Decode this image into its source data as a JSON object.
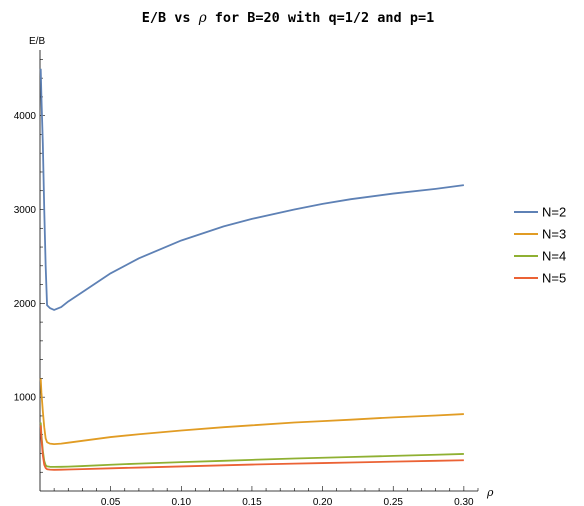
{
  "chart_data": {
    "type": "line",
    "title_prefix": "E/B vs ",
    "title_symbol": "ρ",
    "title_suffix": " for B=20 with q=1/2 and p=1",
    "xlabel": "ρ",
    "ylabel": "E/B",
    "xlim": [
      0,
      0.31
    ],
    "ylim": [
      0,
      4700
    ],
    "x_ticks": [
      0.05,
      0.1,
      0.15,
      0.2,
      0.25,
      0.3
    ],
    "x_tick_labels": [
      "0.05",
      "0.10",
      "0.15",
      "0.20",
      "0.25",
      "0.30"
    ],
    "y_ticks": [
      1000,
      2000,
      3000,
      4000
    ],
    "y_tick_labels": [
      "1000",
      "2000",
      "3000",
      "4000"
    ],
    "grid": false,
    "legend_position": "right",
    "series": [
      {
        "name": "N=2",
        "color": "#5E81B5",
        "x": [
          0.0005,
          0.001,
          0.002,
          0.003,
          0.004,
          0.005,
          0.007,
          0.01,
          0.015,
          0.02,
          0.03,
          0.05,
          0.07,
          0.1,
          0.13,
          0.15,
          0.18,
          0.2,
          0.22,
          0.25,
          0.28,
          0.3
        ],
        "y": [
          4500,
          4200,
          3700,
          3000,
          2400,
          1980,
          1950,
          1930,
          1960,
          2020,
          2120,
          2320,
          2480,
          2670,
          2820,
          2900,
          3000,
          3060,
          3110,
          3170,
          3220,
          3260
        ]
      },
      {
        "name": "N=3",
        "color": "#E19C24",
        "x": [
          0.0005,
          0.001,
          0.002,
          0.003,
          0.004,
          0.005,
          0.007,
          0.01,
          0.015,
          0.02,
          0.03,
          0.05,
          0.07,
          0.1,
          0.13,
          0.15,
          0.18,
          0.2,
          0.22,
          0.25,
          0.28,
          0.3
        ],
        "y": [
          1200,
          1050,
          850,
          680,
          560,
          520,
          505,
          500,
          505,
          515,
          535,
          575,
          605,
          645,
          680,
          700,
          730,
          745,
          760,
          785,
          805,
          820
        ]
      },
      {
        "name": "N=4",
        "color": "#8FB032",
        "x": [
          0.0005,
          0.001,
          0.002,
          0.003,
          0.004,
          0.005,
          0.007,
          0.01,
          0.015,
          0.02,
          0.03,
          0.05,
          0.07,
          0.1,
          0.13,
          0.15,
          0.18,
          0.2,
          0.22,
          0.25,
          0.28,
          0.3
        ],
        "y": [
          730,
          600,
          430,
          320,
          275,
          262,
          258,
          257,
          258,
          260,
          266,
          280,
          292,
          308,
          322,
          332,
          346,
          354,
          362,
          374,
          386,
          395
        ]
      },
      {
        "name": "N=5",
        "color": "#EB6235",
        "x": [
          0.0005,
          0.001,
          0.002,
          0.003,
          0.004,
          0.005,
          0.007,
          0.01,
          0.015,
          0.02,
          0.03,
          0.05,
          0.07,
          0.1,
          0.13,
          0.15,
          0.18,
          0.2,
          0.22,
          0.25,
          0.28,
          0.3
        ],
        "y": [
          700,
          560,
          380,
          280,
          245,
          232,
          228,
          226,
          227,
          229,
          233,
          242,
          250,
          262,
          274,
          282,
          292,
          298,
          304,
          313,
          322,
          328
        ]
      }
    ]
  }
}
